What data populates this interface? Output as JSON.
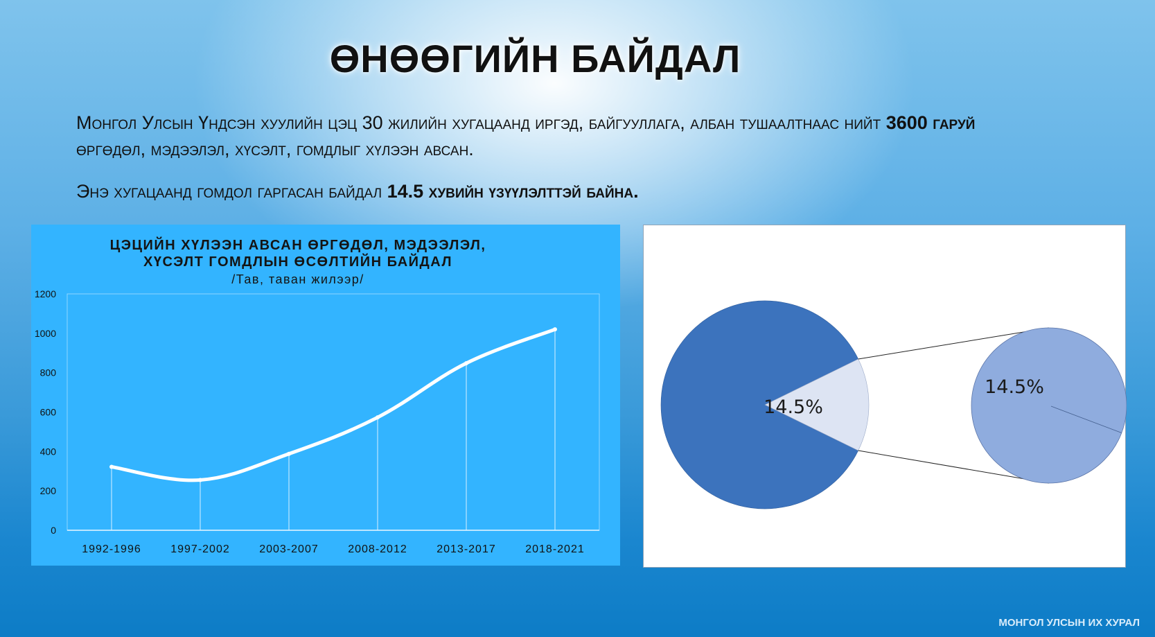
{
  "slide": {
    "title": "ӨНӨӨГИЙН БАЙДАЛ",
    "para1": {
      "part1": "Монгол Улсын Үндсэн хуулийн цэц 30 жилийн хугацаанд иргэд, байгууллага, албан тушаалтнаас нийт ",
      "bold": "3600 гаруй",
      "part2": " өргөдөл, мэдээлэл, хүсэлт, гомдлыг хүлээн авсан."
    },
    "para2": {
      "part1": "Энэ хугацаанд ",
      "part2": "гомдол гаргасан байдал ",
      "bold": "14.5 хувийн үзүүлэлттэй байна."
    },
    "footer": "МОНГОЛ УЛСЫН ИХ ХУРАЛ"
  },
  "colors": {
    "line_panel_bg": "#33b4ff",
    "pie_main": "#3c73bd",
    "pie_slice": "#dde4f3",
    "pie_secondary": "#8facde"
  },
  "chart_data": [
    {
      "type": "line",
      "title_line1": "ЦЭЦИЙН ХҮЛЭЭН АВСАН ӨРГӨДӨЛ, МЭДЭЭЛЭЛ,",
      "title_line2": "ХҮСЭЛТ ГОМДЛЫН ӨСӨЛТИЙН БАЙДАЛ",
      "subtitle": "/Тав, таван жилээр/",
      "categories": [
        "1992-1996",
        "1997-2002",
        "2003-2007",
        "2008-2012",
        "2013-2017",
        "2018-2021"
      ],
      "values": [
        322,
        255,
        388,
        573,
        848,
        1020
      ],
      "ylim": [
        0,
        1200
      ],
      "yticks": [
        "0",
        "200",
        "400",
        "600",
        "800",
        "1000",
        "1200"
      ],
      "grid": false,
      "drop_lines": true
    },
    {
      "type": "pie",
      "variant": "pie-of-pie",
      "slices": [
        {
          "value": 85.5
        },
        {
          "value": 14.5,
          "label": "14.5%"
        }
      ],
      "secondary": {
        "label": "14.5%"
      }
    }
  ]
}
